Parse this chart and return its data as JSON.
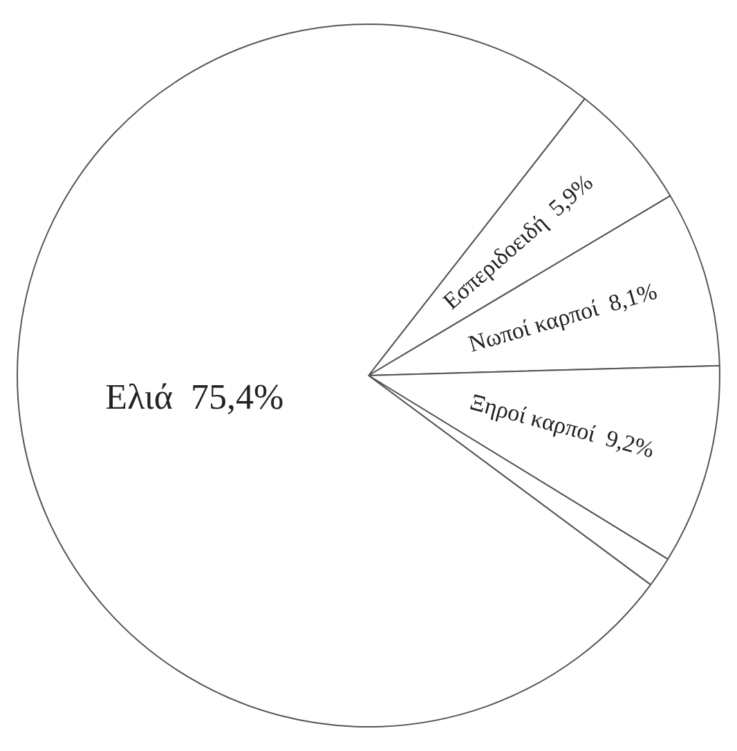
{
  "chart_data": {
    "type": "pie",
    "categories": [
      "Εσπεριδοειδή",
      "Νωποί καρποί",
      "Ξηροί καρποί",
      null,
      "Ελιά"
    ],
    "values": [
      5.9,
      8.1,
      9.2,
      1.4,
      75.4
    ],
    "value_labels": [
      "5,9%",
      "8,1%",
      "9,2%",
      null,
      "75,4%"
    ],
    "colors": [
      "#ffffff",
      "#ffffff",
      "#ffffff",
      "#ffffff",
      "#ffffff"
    ],
    "legend": false
  }
}
